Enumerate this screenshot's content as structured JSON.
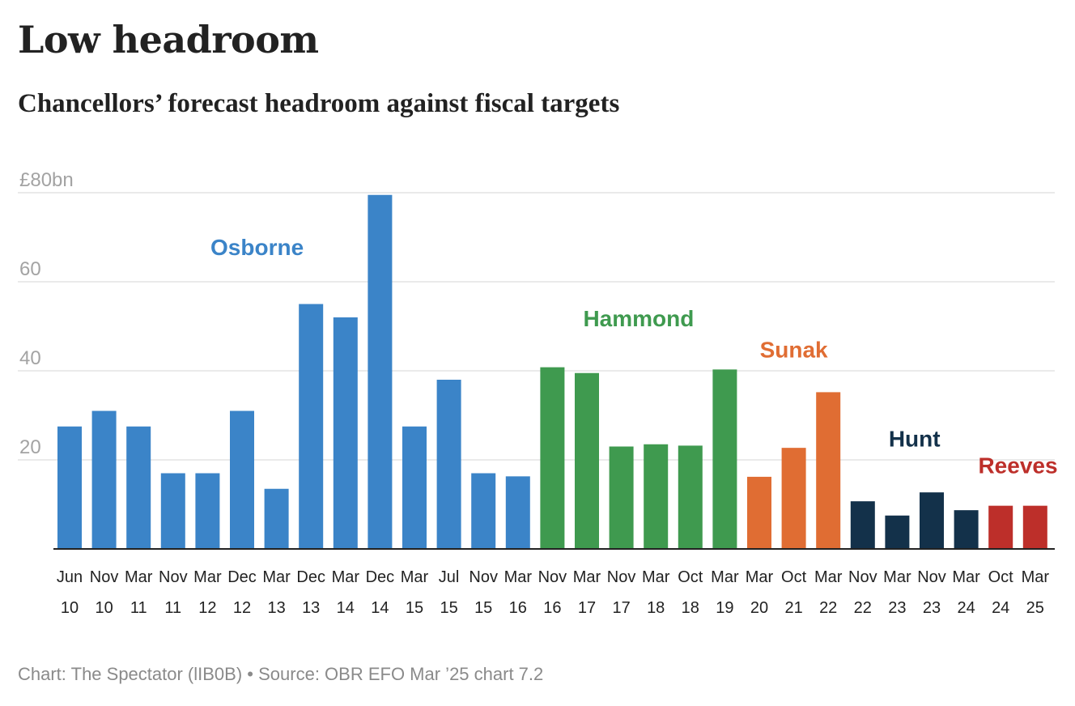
{
  "title": "Low headroom",
  "subtitle": "Chancellors’ forecast headroom against fiscal targets",
  "footer": {
    "credit": "Chart: The Spectator (lIB0B)",
    "separator": "•",
    "source": "Source: OBR EFO Mar ’25 chart 7.2"
  },
  "chart_data": {
    "type": "bar",
    "ylim": [
      0,
      80
    ],
    "yticks": [
      {
        "value": 80,
        "label": "£80bn"
      },
      {
        "value": 60,
        "label": "60"
      },
      {
        "value": 40,
        "label": "40"
      },
      {
        "value": 20,
        "label": "20"
      }
    ],
    "grid": true,
    "colors": {
      "Osborne": "#3b84c8",
      "Hammond": "#3f9a4f",
      "Sunak": "#e06d33",
      "Hunt": "#13314a",
      "Reeves": "#bd2f2a"
    },
    "groups": [
      {
        "name": "Osborne",
        "label_value": 66
      },
      {
        "name": "Hammond",
        "label_value": 50
      },
      {
        "name": "Sunak",
        "label_value": 43
      },
      {
        "name": "Hunt",
        "label_value": 23
      },
      {
        "name": "Reeves",
        "label_value": 17
      }
    ],
    "bars": [
      {
        "month": "Jun",
        "year": "10",
        "value": 27.5,
        "chancellor": "Osborne"
      },
      {
        "month": "Nov",
        "year": "10",
        "value": 31,
        "chancellor": "Osborne"
      },
      {
        "month": "Mar",
        "year": "11",
        "value": 27.5,
        "chancellor": "Osborne"
      },
      {
        "month": "Nov",
        "year": "11",
        "value": 17,
        "chancellor": "Osborne"
      },
      {
        "month": "Mar",
        "year": "12",
        "value": 17,
        "chancellor": "Osborne"
      },
      {
        "month": "Dec",
        "year": "12",
        "value": 31,
        "chancellor": "Osborne"
      },
      {
        "month": "Mar",
        "year": "13",
        "value": 13.5,
        "chancellor": "Osborne"
      },
      {
        "month": "Dec",
        "year": "13",
        "value": 55,
        "chancellor": "Osborne"
      },
      {
        "month": "Mar",
        "year": "14",
        "value": 52,
        "chancellor": "Osborne"
      },
      {
        "month": "Dec",
        "year": "14",
        "value": 79.5,
        "chancellor": "Osborne"
      },
      {
        "month": "Mar",
        "year": "15",
        "value": 27.5,
        "chancellor": "Osborne"
      },
      {
        "month": "Jul",
        "year": "15",
        "value": 38,
        "chancellor": "Osborne"
      },
      {
        "month": "Nov",
        "year": "15",
        "value": 17,
        "chancellor": "Osborne"
      },
      {
        "month": "Mar",
        "year": "16",
        "value": 16.3,
        "chancellor": "Osborne"
      },
      {
        "month": "Nov",
        "year": "16",
        "value": 40.8,
        "chancellor": "Hammond"
      },
      {
        "month": "Mar",
        "year": "17",
        "value": 39.5,
        "chancellor": "Hammond"
      },
      {
        "month": "Nov",
        "year": "17",
        "value": 23,
        "chancellor": "Hammond"
      },
      {
        "month": "Mar",
        "year": "18",
        "value": 23.5,
        "chancellor": "Hammond"
      },
      {
        "month": "Oct",
        "year": "18",
        "value": 23.2,
        "chancellor": "Hammond"
      },
      {
        "month": "Mar",
        "year": "19",
        "value": 40.3,
        "chancellor": "Hammond"
      },
      {
        "month": "Mar",
        "year": "20",
        "value": 16.2,
        "chancellor": "Sunak"
      },
      {
        "month": "Oct",
        "year": "21",
        "value": 22.7,
        "chancellor": "Sunak"
      },
      {
        "month": "Mar",
        "year": "22",
        "value": 35.2,
        "chancellor": "Sunak"
      },
      {
        "month": "Nov",
        "year": "22",
        "value": 10.7,
        "chancellor": "Hunt"
      },
      {
        "month": "Mar",
        "year": "23",
        "value": 7.5,
        "chancellor": "Hunt"
      },
      {
        "month": "Nov",
        "year": "23",
        "value": 12.7,
        "chancellor": "Hunt"
      },
      {
        "month": "Mar",
        "year": "24",
        "value": 8.7,
        "chancellor": "Hunt"
      },
      {
        "month": "Oct",
        "year": "24",
        "value": 9.7,
        "chancellor": "Reeves"
      },
      {
        "month": "Mar",
        "year": "25",
        "value": 9.7,
        "chancellor": "Reeves"
      }
    ]
  }
}
